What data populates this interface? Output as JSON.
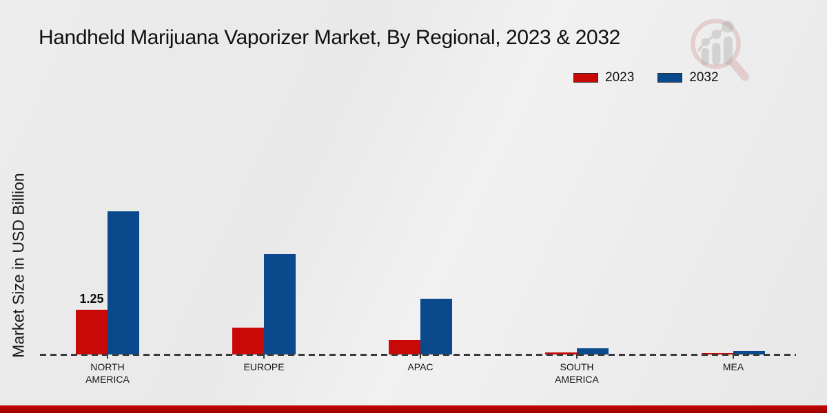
{
  "page": {
    "title": "Handheld Marijuana Vaporizer Market, By Regional, 2023 & 2032"
  },
  "axis": {
    "ylabel": "Market Size in USD Billion"
  },
  "legend": {
    "items": [
      {
        "label": "2023",
        "color": "#c90808"
      },
      {
        "label": "2032",
        "color": "#0a4a8c"
      }
    ]
  },
  "watermark": {
    "icon": "magnifier-bar-chart-logo",
    "ring_color": "#d59c9c",
    "bars_color": "#bcbcbc"
  },
  "colors": {
    "series_2023": "#c90808",
    "series_2032": "#0a4a8c",
    "baseline_dash": "#3a3a3a",
    "footer_strip": "#b80000",
    "background": "#eaeaea"
  },
  "chart_data": {
    "type": "bar",
    "title": "Handheld Marijuana Vaporizer Market, By Regional, 2023 & 2032",
    "xlabel": "",
    "ylabel": "Market Size in USD Billion",
    "categories": [
      "NORTH AMERICA",
      "EUROPE",
      "APAC",
      "SOUTH AMERICA",
      "MEA"
    ],
    "series": [
      {
        "name": "2023",
        "color": "#c90808",
        "values": [
          1.25,
          0.75,
          0.4,
          0.05,
          0.03
        ]
      },
      {
        "name": "2032",
        "color": "#0a4a8c",
        "values": [
          4.0,
          2.8,
          1.55,
          0.17,
          0.1
        ]
      }
    ],
    "ylim": [
      0,
      4.5
    ],
    "grid": false,
    "y_axis_ticks_visible": false,
    "baseline_style": "dashed",
    "legend_position": "top-right",
    "data_labels": [
      {
        "series": "2023",
        "category_index": 0,
        "text": "1.25"
      }
    ]
  }
}
